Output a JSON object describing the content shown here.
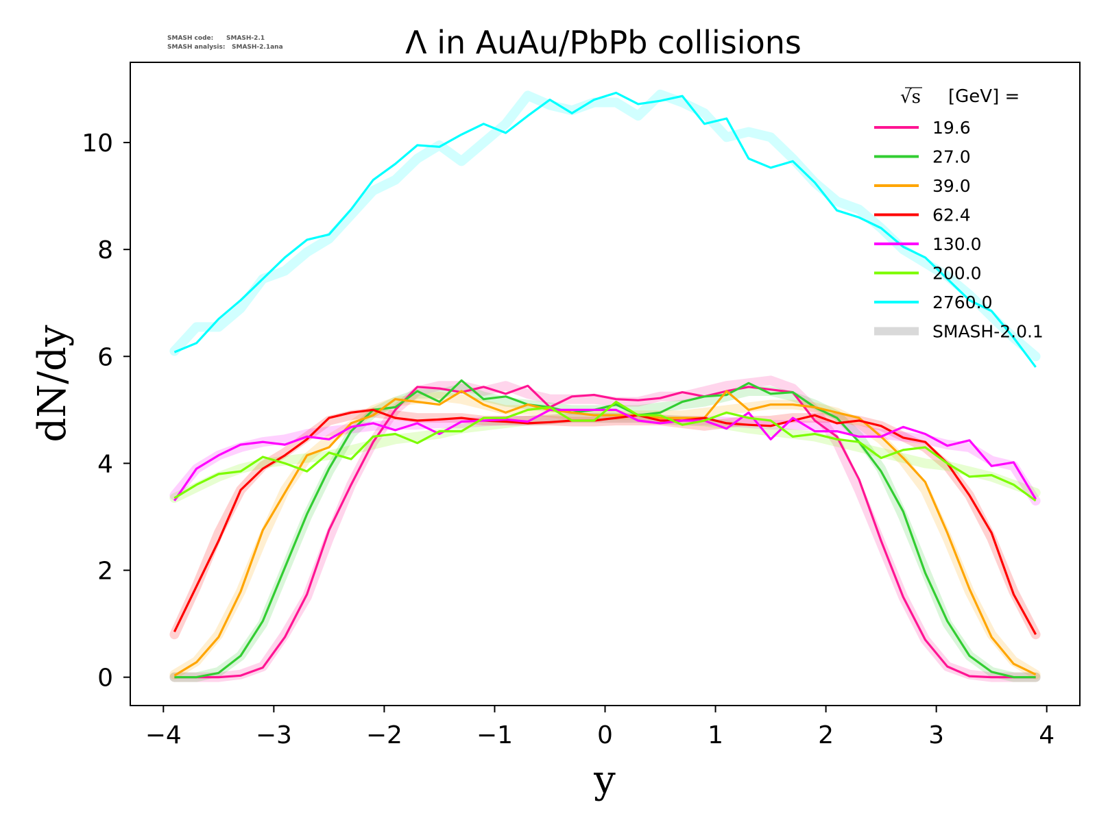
{
  "meta": {
    "code_label": "SMASH code:",
    "code_value": "SMASH-2.1",
    "analysis_label": "SMASH analysis:",
    "analysis_value": "SMASH-2.1ana"
  },
  "chart_data": {
    "type": "line",
    "title": "Λ in AuAu/PbPb collisions",
    "xlabel": "y",
    "ylabel": "dN/dy",
    "xlim": [
      -4.3,
      4.3
    ],
    "ylim": [
      -0.53,
      11.5
    ],
    "xticks": [
      -4,
      -3,
      -2,
      -1,
      0,
      1,
      2,
      3,
      4
    ],
    "xtick_labels": [
      "−4",
      "−3",
      "−2",
      "−1",
      "0",
      "1",
      "2",
      "3",
      "4"
    ],
    "yticks": [
      0,
      2,
      4,
      6,
      8,
      10
    ],
    "ytick_labels": [
      "0",
      "2",
      "4",
      "6",
      "8",
      "10"
    ],
    "legend": {
      "title_suffix": "[GeV] =",
      "sqrt_symbol": "√s",
      "placement": "top-right",
      "reference_label": "SMASH-2.0.1",
      "reference_color": "#d9d9d9"
    },
    "x": [
      -3.9,
      -3.7,
      -3.5,
      -3.3,
      -3.1,
      -2.9,
      -2.7,
      -2.5,
      -2.3,
      -2.1,
      -1.9,
      -1.7,
      -1.5,
      -1.3,
      -1.1,
      -0.9,
      -0.7,
      -0.5,
      -0.3,
      -0.1,
      0.1,
      0.3,
      0.5,
      0.7,
      0.9,
      1.1,
      1.3,
      1.5,
      1.7,
      1.9,
      2.1,
      2.3,
      2.5,
      2.7,
      2.9,
      3.1,
      3.3,
      3.5,
      3.7,
      3.9
    ],
    "series": [
      {
        "name": "19.6",
        "color": "#ff1493",
        "values": [
          0.0,
          0.0,
          0.0,
          0.03,
          0.18,
          0.75,
          1.55,
          2.75,
          3.6,
          4.4,
          5.0,
          5.43,
          5.4,
          5.33,
          5.43,
          5.3,
          5.45,
          5.05,
          5.25,
          5.28,
          5.2,
          5.18,
          5.22,
          5.33,
          5.25,
          5.35,
          5.43,
          5.38,
          5.33,
          4.8,
          4.5,
          3.7,
          2.55,
          1.5,
          0.7,
          0.2,
          0.02,
          0.0,
          0.0,
          0.0
        ],
        "reference": [
          0.0,
          0.0,
          0.0,
          0.05,
          0.2,
          0.8,
          1.5,
          2.6,
          3.6,
          4.4,
          5.0,
          5.35,
          5.45,
          5.45,
          5.35,
          5.45,
          5.3,
          5.2,
          5.2,
          5.2,
          5.15,
          5.15,
          5.25,
          5.25,
          5.35,
          5.45,
          5.5,
          5.55,
          5.4,
          5.0,
          4.4,
          3.5,
          2.5,
          1.5,
          0.7,
          0.2,
          0.05,
          0.0,
          0.0,
          0.0
        ]
      },
      {
        "name": "27.0",
        "color": "#32cd32",
        "values": [
          0.0,
          0.0,
          0.08,
          0.4,
          1.05,
          2.05,
          3.05,
          3.9,
          4.6,
          5.0,
          5.05,
          5.35,
          5.15,
          5.55,
          5.2,
          5.25,
          5.1,
          5.05,
          4.95,
          5.0,
          5.1,
          4.9,
          4.95,
          5.15,
          5.25,
          5.28,
          5.5,
          5.3,
          5.33,
          5.05,
          4.85,
          4.4,
          3.85,
          3.1,
          1.95,
          1.05,
          0.4,
          0.1,
          0.0,
          0.0
        ],
        "reference": [
          0.0,
          0.0,
          0.1,
          0.4,
          1.0,
          2.0,
          3.0,
          3.85,
          4.55,
          4.95,
          5.15,
          5.3,
          5.3,
          5.4,
          5.25,
          5.15,
          5.1,
          5.05,
          5.0,
          5.0,
          5.0,
          5.0,
          5.05,
          5.1,
          5.15,
          5.25,
          5.35,
          5.35,
          5.25,
          5.1,
          4.9,
          4.5,
          3.9,
          3.0,
          2.0,
          1.0,
          0.4,
          0.1,
          0.0,
          0.0
        ]
      },
      {
        "name": "39.0",
        "color": "#ffa500",
        "values": [
          0.03,
          0.28,
          0.75,
          1.6,
          2.75,
          3.45,
          4.15,
          4.3,
          4.75,
          4.9,
          5.2,
          5.15,
          5.1,
          5.35,
          5.1,
          4.95,
          5.1,
          5.0,
          4.95,
          4.9,
          4.9,
          4.9,
          4.85,
          4.85,
          4.85,
          5.35,
          5.0,
          5.1,
          5.1,
          5.05,
          4.95,
          4.85,
          4.5,
          4.1,
          3.65,
          2.7,
          1.65,
          0.75,
          0.25,
          0.05
        ],
        "reference": [
          0.05,
          0.3,
          0.8,
          1.6,
          2.6,
          3.5,
          4.1,
          4.45,
          4.7,
          5.0,
          5.15,
          5.2,
          5.25,
          5.2,
          5.1,
          5.0,
          5.0,
          4.95,
          4.9,
          4.9,
          4.9,
          4.9,
          4.9,
          4.9,
          4.95,
          5.0,
          5.05,
          5.1,
          5.1,
          5.05,
          4.95,
          4.75,
          4.45,
          4.05,
          3.5,
          2.6,
          1.6,
          0.8,
          0.3,
          0.05
        ]
      },
      {
        "name": "62.4",
        "color": "#ff0000",
        "values": [
          0.85,
          1.7,
          2.55,
          3.5,
          3.9,
          4.15,
          4.45,
          4.85,
          4.95,
          5.0,
          4.85,
          4.8,
          4.82,
          4.85,
          4.8,
          4.78,
          4.75,
          4.77,
          4.8,
          4.8,
          4.85,
          4.9,
          4.8,
          4.8,
          4.85,
          4.75,
          4.72,
          4.7,
          4.8,
          4.9,
          4.75,
          4.8,
          4.7,
          4.48,
          4.4,
          4.0,
          3.4,
          2.7,
          1.55,
          0.8
        ],
        "reference": [
          0.8,
          1.7,
          2.7,
          3.5,
          3.95,
          4.2,
          4.5,
          4.8,
          4.9,
          4.95,
          4.9,
          4.85,
          4.85,
          4.85,
          4.8,
          4.8,
          4.8,
          4.8,
          4.78,
          4.78,
          4.8,
          4.8,
          4.8,
          4.75,
          4.7,
          4.75,
          4.8,
          4.8,
          4.85,
          4.85,
          4.85,
          4.8,
          4.7,
          4.5,
          4.3,
          3.95,
          3.4,
          2.6,
          1.6,
          0.8
        ]
      },
      {
        "name": "130.0",
        "color": "#ff00ff",
        "values": [
          3.3,
          3.9,
          4.15,
          4.35,
          4.4,
          4.35,
          4.5,
          4.45,
          4.68,
          4.75,
          4.62,
          4.75,
          4.55,
          4.78,
          4.8,
          4.82,
          4.78,
          5.0,
          5.0,
          5.0,
          5.0,
          4.8,
          4.75,
          4.8,
          4.8,
          4.65,
          4.95,
          4.45,
          4.85,
          4.6,
          4.6,
          4.5,
          4.5,
          4.68,
          4.55,
          4.33,
          4.43,
          3.95,
          4.02,
          3.33
        ],
        "reference": [
          3.4,
          3.9,
          4.15,
          4.3,
          4.4,
          4.45,
          4.55,
          4.6,
          4.65,
          4.7,
          4.72,
          4.72,
          4.75,
          4.75,
          4.78,
          4.8,
          4.8,
          4.82,
          4.85,
          4.85,
          4.85,
          4.85,
          4.82,
          4.8,
          4.8,
          4.78,
          4.75,
          4.72,
          4.72,
          4.7,
          4.68,
          4.62,
          4.55,
          4.5,
          4.45,
          4.35,
          4.3,
          4.05,
          3.95,
          3.3
        ]
      },
      {
        "name": "200.0",
        "color": "#7cfc00",
        "values": [
          3.35,
          3.6,
          3.8,
          3.85,
          4.12,
          4.0,
          3.85,
          4.2,
          4.08,
          4.5,
          4.55,
          4.38,
          4.6,
          4.6,
          4.85,
          4.85,
          5.0,
          5.05,
          4.8,
          4.8,
          5.15,
          4.9,
          4.9,
          4.72,
          4.8,
          4.95,
          4.85,
          4.8,
          4.5,
          4.55,
          4.45,
          4.4,
          4.1,
          4.25,
          4.3,
          4.0,
          3.75,
          3.78,
          3.6,
          3.3
        ],
        "reference": [
          3.35,
          3.55,
          3.75,
          3.9,
          4.0,
          4.05,
          4.1,
          4.15,
          4.25,
          4.35,
          4.45,
          4.5,
          4.55,
          4.65,
          4.7,
          4.75,
          4.8,
          4.82,
          4.85,
          4.85,
          4.85,
          4.85,
          4.82,
          4.8,
          4.78,
          4.72,
          4.65,
          4.6,
          4.55,
          4.5,
          4.4,
          4.3,
          4.2,
          4.1,
          4.0,
          3.95,
          3.85,
          3.75,
          3.6,
          3.45
        ]
      },
      {
        "name": "2760.0",
        "color": "#00ffff",
        "values": [
          6.08,
          6.25,
          6.7,
          7.05,
          7.45,
          7.85,
          8.18,
          8.28,
          8.75,
          9.3,
          9.6,
          9.95,
          9.92,
          10.15,
          10.35,
          10.18,
          10.5,
          10.8,
          10.55,
          10.8,
          10.93,
          10.72,
          10.78,
          10.87,
          10.35,
          10.45,
          9.7,
          9.53,
          9.65,
          9.25,
          8.73,
          8.6,
          8.4,
          8.05,
          7.85,
          7.45,
          7.05,
          6.85,
          6.35,
          5.8
        ],
        "reference": [
          6.1,
          6.55,
          6.55,
          6.9,
          7.45,
          7.6,
          7.95,
          8.2,
          8.65,
          9.1,
          9.3,
          9.7,
          9.95,
          9.65,
          10.0,
          10.35,
          10.88,
          10.7,
          10.6,
          10.75,
          10.75,
          10.5,
          10.9,
          10.75,
          10.55,
          10.1,
          10.2,
          10.1,
          9.7,
          9.25,
          8.9,
          8.75,
          8.4,
          8.0,
          7.75,
          7.5,
          7.15,
          6.75,
          6.35,
          6.0
        ]
      }
    ]
  }
}
